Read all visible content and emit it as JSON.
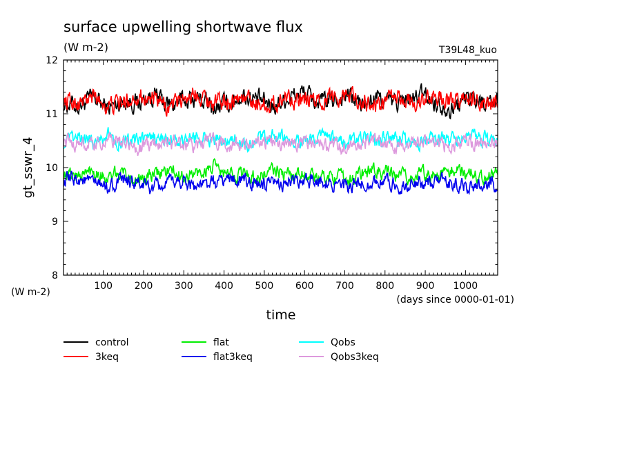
{
  "chart_data": {
    "type": "line",
    "title": "surface upwelling shortwave flux",
    "units": "(W m-2)",
    "run_label": "T39L48_kuo",
    "ylabel": "gt_sswr_4",
    "yunit": "(W m-2)",
    "xlabel": "time",
    "xunit": "(days since 0000-01-01)",
    "xlim": [
      1,
      1080
    ],
    "ylim": [
      8,
      12
    ],
    "x_ticks": [
      100,
      200,
      300,
      400,
      500,
      600,
      700,
      800,
      900,
      1000
    ],
    "y_ticks": [
      8,
      9,
      10,
      11,
      12
    ],
    "legend_position": "bottom",
    "series": [
      {
        "name": "control",
        "color": "#000000",
        "mean": 11.18,
        "amplitude": 0.18,
        "values": [
          11.2,
          11.15,
          11.3,
          11.1,
          11.25,
          11.2,
          11.35,
          11.15,
          11.25,
          11.3,
          11.1,
          11.2,
          11.35,
          11.25,
          11.15,
          11.3,
          11.4,
          11.2,
          11.25,
          11.35,
          11.15,
          11.3,
          11.2,
          11.25,
          11.35,
          11.2,
          11.1,
          11.3,
          11.25,
          11.2
        ]
      },
      {
        "name": "3keq",
        "color": "#ff0000",
        "mean": 11.2,
        "amplitude": 0.17,
        "values": [
          11.25,
          11.2,
          11.3,
          11.15,
          11.2,
          11.35,
          11.25,
          11.1,
          11.3,
          11.4,
          11.2,
          11.25,
          11.3,
          11.2,
          11.15,
          11.35,
          11.2,
          11.25,
          11.3,
          11.4,
          11.2,
          11.15,
          11.3,
          11.25,
          11.2,
          11.35,
          11.2,
          11.3,
          11.15,
          11.25
        ]
      },
      {
        "name": "flat",
        "color": "#00ee00",
        "mean": 9.85,
        "amplitude": 0.14,
        "values": [
          9.9,
          9.85,
          9.95,
          9.8,
          9.9,
          9.75,
          9.85,
          9.95,
          9.8,
          9.9,
          10.0,
          9.85,
          9.9,
          9.8,
          9.95,
          9.85,
          9.9,
          9.8,
          9.85,
          9.75,
          9.9,
          9.95,
          9.85,
          9.8,
          9.9,
          9.85,
          9.95,
          9.9,
          9.85,
          9.9
        ]
      },
      {
        "name": "flat3keq",
        "color": "#0000ee",
        "mean": 9.72,
        "amplitude": 0.14,
        "values": [
          9.75,
          9.8,
          9.7,
          9.65,
          9.75,
          9.7,
          9.6,
          9.7,
          9.75,
          9.65,
          9.7,
          9.8,
          9.75,
          9.7,
          9.65,
          9.75,
          9.7,
          9.8,
          9.7,
          9.6,
          9.7,
          9.75,
          9.7,
          9.65,
          9.7,
          9.75,
          9.7,
          9.65,
          9.7,
          9.7
        ]
      },
      {
        "name": "Qobs",
        "color": "#00ffff",
        "mean": 10.5,
        "amplitude": 0.14,
        "values": [
          10.45,
          10.55,
          10.5,
          10.6,
          10.45,
          10.5,
          10.55,
          10.5,
          10.45,
          10.6,
          10.5,
          10.55,
          10.45,
          10.5,
          10.6,
          10.5,
          10.45,
          10.55,
          10.5,
          10.45,
          10.55,
          10.5,
          10.6,
          10.45,
          10.5,
          10.55,
          10.5,
          10.6,
          10.5,
          10.55
        ]
      },
      {
        "name": "Qobs3keq",
        "color": "#dd99dd",
        "mean": 10.45,
        "amplitude": 0.14,
        "values": [
          10.5,
          10.45,
          10.4,
          10.5,
          10.45,
          10.35,
          10.45,
          10.5,
          10.4,
          10.45,
          10.5,
          10.45,
          10.4,
          10.5,
          10.45,
          10.4,
          10.5,
          10.45,
          10.4,
          10.35,
          10.45,
          10.5,
          10.4,
          10.45,
          10.5,
          10.45,
          10.4,
          10.5,
          10.45,
          10.5
        ]
      }
    ]
  }
}
